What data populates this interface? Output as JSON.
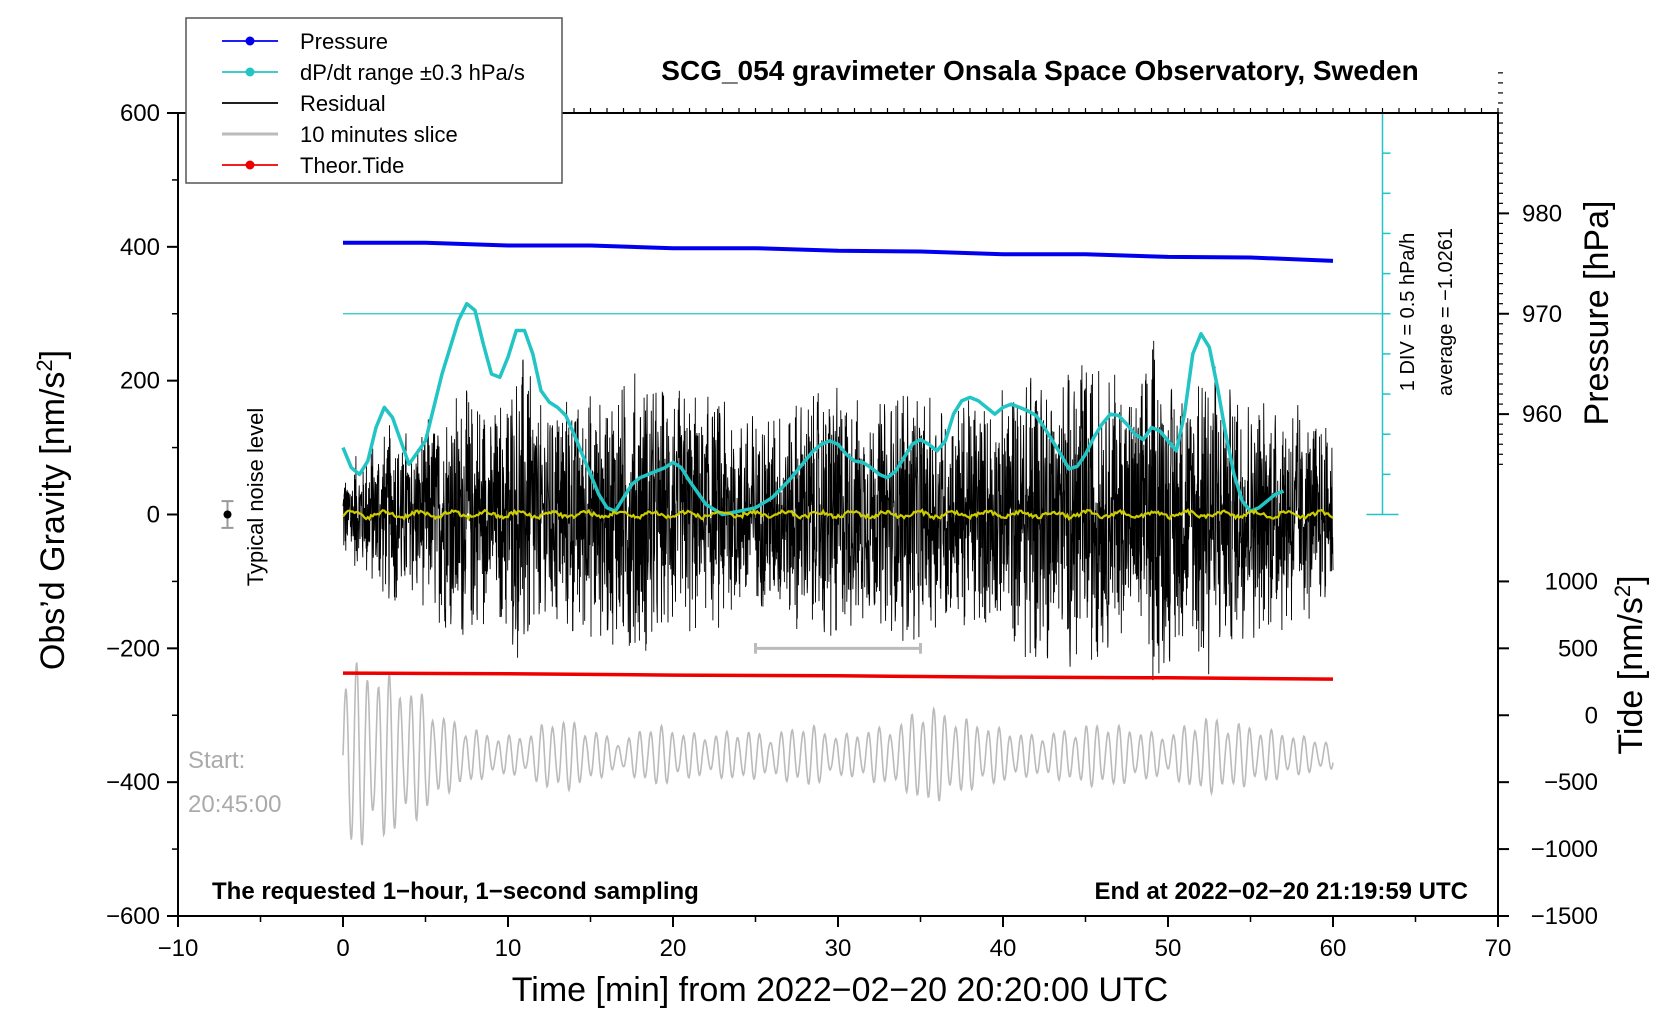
{
  "chart_data": {
    "type": "line",
    "title": "SCG_054 gravimeter Onsala Space Observatory, Sweden",
    "xlabel": "Time [min] from 2022−02−20 20:20:00 UTC",
    "ylabel_left_text": "Obs’d Gravity [nm/s",
    "ylabel_left_sup": "2",
    "ylabel_left_close": "]",
    "ylabel_right_pressure": "Pressure [hPa]",
    "ylabel_right_tide_text": "Tide [nm/s",
    "ylabel_right_tide_sup": "2",
    "ylabel_right_tide_close": "]",
    "xlim": [
      -10,
      70
    ],
    "ylim": [
      -600,
      600
    ],
    "x_ticks": [
      "−10",
      "0",
      "10",
      "20",
      "30",
      "40",
      "50",
      "60",
      "70"
    ],
    "x_tick_values": [
      -10,
      0,
      10,
      20,
      30,
      40,
      50,
      60,
      70
    ],
    "y_ticks": [
      "600",
      "400",
      "200",
      "0",
      "−200",
      "−400",
      "−600"
    ],
    "y_tick_values": [
      600,
      400,
      200,
      0,
      -200,
      -400,
      -600
    ],
    "pressure_axis": {
      "ticks": [
        "980",
        "970",
        "960"
      ],
      "tick_values": [
        980,
        970,
        960
      ],
      "gravity_equivalent": {
        "ref_hpa": 970,
        "ref_gravity": 300,
        "gravity_per_hpa": 15
      }
    },
    "tide_axis": {
      "ticks": [
        "1000",
        "500",
        "0",
        "−500",
        "−1000",
        "−1500"
      ],
      "tick_values": [
        1000,
        500,
        0,
        -500,
        -1000,
        -1500
      ],
      "gravity_equivalent": {
        "ref_tide": 0,
        "ref_gravity": -300,
        "gravity_per_tide": 0.2
      }
    },
    "dpdt_scale": {
      "label": "1 DIV = 0.5 hPa/h",
      "average_label": "average = −1.0261",
      "x_minutes": 63,
      "bottom_gravity": 0,
      "top_gravity": 600,
      "divisions": 10,
      "center_line_gravity": 300
    },
    "legend": {
      "position": "top-left",
      "items": [
        {
          "label": "Pressure",
          "color": "#0000ee",
          "marker": true
        },
        {
          "label": "dP/dt range ±0.3 hPa/s",
          "color": "#22c4c4",
          "marker": true
        },
        {
          "label": "Residual",
          "color": "#000000",
          "marker": false
        },
        {
          "label": "10 minutes slice",
          "color": "#bbbbbb",
          "marker": false
        },
        {
          "label": "Theor.Tide",
          "color": "#ee0000",
          "marker": true
        }
      ]
    },
    "noise": {
      "label": "Typical noise level",
      "x": -7,
      "y": 0,
      "err": 20
    },
    "start_label": "Start:",
    "start_time": "20:45:00",
    "slice_window": [
      25,
      35
    ],
    "note_left": "The requested 1−hour, 1−second sampling",
    "note_right": "End at 2022−02−20 21:19:59 UTC",
    "series": [
      {
        "name": "Pressure",
        "color": "#0000ee",
        "x": [
          0,
          5,
          10,
          15,
          20,
          25,
          30,
          35,
          40,
          45,
          50,
          55,
          60
        ],
        "values": [
          407,
          405,
          403,
          401,
          399,
          397,
          395,
          392,
          390,
          388,
          386,
          383,
          380
        ]
      },
      {
        "name": "dP/dt",
        "color": "#22c4c4",
        "x": [
          0,
          0.5,
          1,
          1.5,
          2,
          2.5,
          3,
          3.5,
          4,
          5,
          6,
          7,
          7.5,
          8,
          8.5,
          9,
          9.5,
          10,
          10.5,
          11,
          11.5,
          12,
          12.5,
          13,
          13.5,
          14,
          15,
          15.5,
          16,
          16.5,
          17,
          17.5,
          18,
          18.5,
          19,
          19.5,
          20,
          20.5,
          21,
          22,
          23,
          24,
          25,
          26,
          27,
          27.5,
          28,
          28.5,
          29,
          29.5,
          30,
          30.5,
          31,
          31.5,
          32,
          32.5,
          33,
          33.5,
          34,
          34.5,
          35,
          35.5,
          36,
          36.5,
          37,
          37.5,
          38,
          38.5,
          39,
          39.5,
          40,
          40.5,
          41,
          41.5,
          42,
          42.5,
          43,
          43.5,
          44,
          44.5,
          45,
          45.5,
          46,
          46.5,
          47,
          47.5,
          48,
          48.5,
          49,
          49.5,
          50,
          50.5,
          51,
          51.5,
          52,
          52.5,
          53,
          53.5,
          54,
          54.5,
          55,
          55.5,
          56,
          56.5,
          57
        ],
        "values": [
          100,
          70,
          60,
          80,
          130,
          160,
          145,
          110,
          75,
          110,
          210,
          290,
          315,
          305,
          255,
          210,
          205,
          235,
          275,
          275,
          240,
          185,
          168,
          160,
          148,
          120,
          60,
          30,
          10,
          5,
          25,
          45,
          55,
          60,
          65,
          70,
          78,
          70,
          50,
          15,
          0,
          5,
          10,
          25,
          50,
          65,
          80,
          95,
          105,
          110,
          105,
          90,
          80,
          78,
          70,
          60,
          55,
          65,
          85,
          105,
          112,
          105,
          95,
          110,
          150,
          170,
          175,
          170,
          160,
          150,
          160,
          165,
          160,
          155,
          148,
          130,
          110,
          90,
          68,
          72,
          90,
          115,
          135,
          150,
          148,
          135,
          120,
          112,
          130,
          125,
          110,
          95,
          150,
          240,
          270,
          250,
          190,
          120,
          60,
          20,
          5,
          10,
          20,
          30,
          35
        ]
      },
      {
        "name": "Residual",
        "color": "#000000",
        "x": [
          0,
          60
        ],
        "values": [
          0,
          0
        ],
        "envelope": [
          [
            0,
            70
          ],
          [
            3,
            140
          ],
          [
            4.5,
            130
          ],
          [
            6,
            170
          ],
          [
            8,
            200
          ],
          [
            9,
            150
          ],
          [
            11,
            250
          ],
          [
            12,
            170
          ],
          [
            14,
            190
          ],
          [
            16,
            190
          ],
          [
            18,
            230
          ],
          [
            19,
            200
          ],
          [
            22,
            180
          ],
          [
            24,
            160
          ],
          [
            26,
            150
          ],
          [
            28,
            190
          ],
          [
            30,
            210
          ],
          [
            32,
            160
          ],
          [
            34,
            200
          ],
          [
            36,
            170
          ],
          [
            39,
            180
          ],
          [
            40,
            200
          ],
          [
            42,
            230
          ],
          [
            44,
            230
          ],
          [
            46,
            230
          ],
          [
            48,
            200
          ],
          [
            49,
            270
          ],
          [
            51,
            200
          ],
          [
            52,
            260
          ],
          [
            54,
            200
          ],
          [
            56,
            180
          ],
          [
            58,
            180
          ],
          [
            60,
            120
          ]
        ]
      },
      {
        "name": "Filtered residual",
        "color": "#cccc00",
        "x": [
          0,
          60
        ],
        "values": [
          0,
          0
        ]
      },
      {
        "name": "10 minutes slice",
        "color": "#bbbbbb",
        "x": [
          0,
          60
        ],
        "values": [
          -300,
          -300
        ],
        "tide_envelope": [
          [
            0,
            700
          ],
          [
            1,
            700
          ],
          [
            3,
            600
          ],
          [
            5,
            450
          ],
          [
            6,
            300
          ],
          [
            7,
            250
          ],
          [
            9,
            150
          ],
          [
            11,
            150
          ],
          [
            13,
            300
          ],
          [
            15,
            200
          ],
          [
            17,
            100
          ],
          [
            18.5,
            250
          ],
          [
            20,
            200
          ],
          [
            22,
            150
          ],
          [
            24,
            200
          ],
          [
            26,
            150
          ],
          [
            28,
            250
          ],
          [
            30,
            150
          ],
          [
            32,
            200
          ],
          [
            34,
            250
          ],
          [
            35,
            400
          ],
          [
            37,
            300
          ],
          [
            38.5,
            250
          ],
          [
            40,
            200
          ],
          [
            42,
            150
          ],
          [
            44,
            200
          ],
          [
            46,
            250
          ],
          [
            48,
            200
          ],
          [
            50,
            150
          ],
          [
            52,
            300
          ],
          [
            54,
            250
          ],
          [
            56,
            200
          ],
          [
            58,
            150
          ],
          [
            60,
            100
          ]
        ]
      },
      {
        "name": "Theor.Tide",
        "color": "#ee0000",
        "x": [
          0,
          10,
          20,
          30,
          40,
          50,
          60
        ],
        "values": [
          -237,
          -238,
          -240,
          -241,
          -243,
          -244,
          -246
        ]
      }
    ]
  }
}
